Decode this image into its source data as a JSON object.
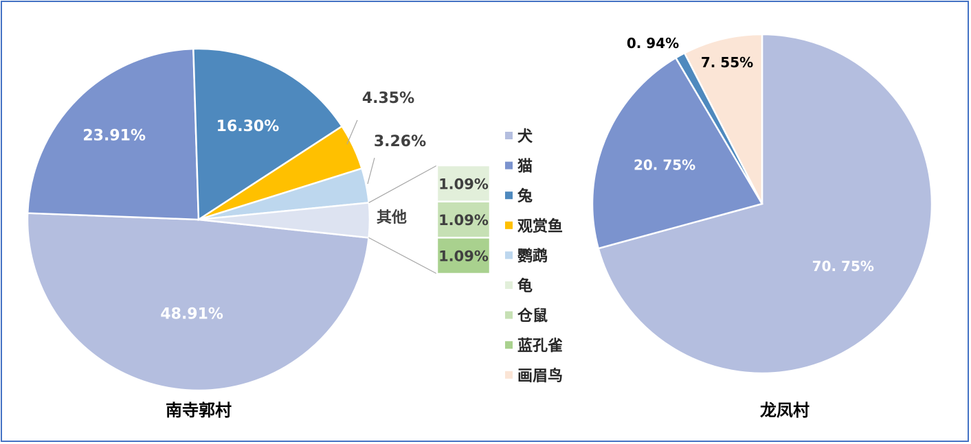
{
  "colors": {
    "frame": "#4472C4",
    "犬": "#B4BEDF",
    "猫": "#7B93CE",
    "兔": "#4E89BE",
    "观赏鱼": "#FFC000",
    "鹦鹉": "#BDD7EE",
    "龟": "#E2EFDA",
    "仓鼠": "#C6E0B4",
    "蓝孔雀": "#A9D18E",
    "画眉鸟": "#FBE5D6",
    "其他": "#DDE3F1"
  },
  "legend": {
    "items": [
      {
        "label": "犬"
      },
      {
        "label": "猫"
      },
      {
        "label": "兔"
      },
      {
        "label": "观赏鱼"
      },
      {
        "label": "鹦鹉"
      },
      {
        "label": "龟"
      },
      {
        "label": "仓鼠"
      },
      {
        "label": "蓝孔雀"
      },
      {
        "label": "画眉鸟"
      }
    ]
  },
  "chart_data": [
    {
      "type": "pie",
      "title": "南寺郭村",
      "slices": [
        {
          "category": "犬",
          "value": 48.91,
          "label": "48.91%"
        },
        {
          "category": "猫",
          "value": 23.91,
          "label": "23.91%"
        },
        {
          "category": "兔",
          "value": 16.3,
          "label": "16.30%"
        },
        {
          "category": "观赏鱼",
          "value": 4.35,
          "label": "4.35%"
        },
        {
          "category": "鹦鹉",
          "value": 3.26,
          "label": "3.26%"
        },
        {
          "category": "其他",
          "value": 3.27,
          "label": "其他"
        }
      ],
      "breakout": {
        "type": "bar",
        "source": "其他",
        "items": [
          {
            "category": "龟",
            "value": 1.09,
            "label": "1.09%"
          },
          {
            "category": "仓鼠",
            "value": 1.09,
            "label": "1.09%"
          },
          {
            "category": "蓝孔雀",
            "value": 1.09,
            "label": "1.09%"
          }
        ]
      }
    },
    {
      "type": "pie",
      "title": "龙凤村",
      "slices": [
        {
          "category": "犬",
          "value": 70.75,
          "label": "70. 75%"
        },
        {
          "category": "猫",
          "value": 20.75,
          "label": "20. 75%"
        },
        {
          "category": "兔",
          "value": 0.94,
          "label": "0. 94%"
        },
        {
          "category": "画眉鸟",
          "value": 7.55,
          "label": "7. 55%"
        }
      ]
    }
  ]
}
